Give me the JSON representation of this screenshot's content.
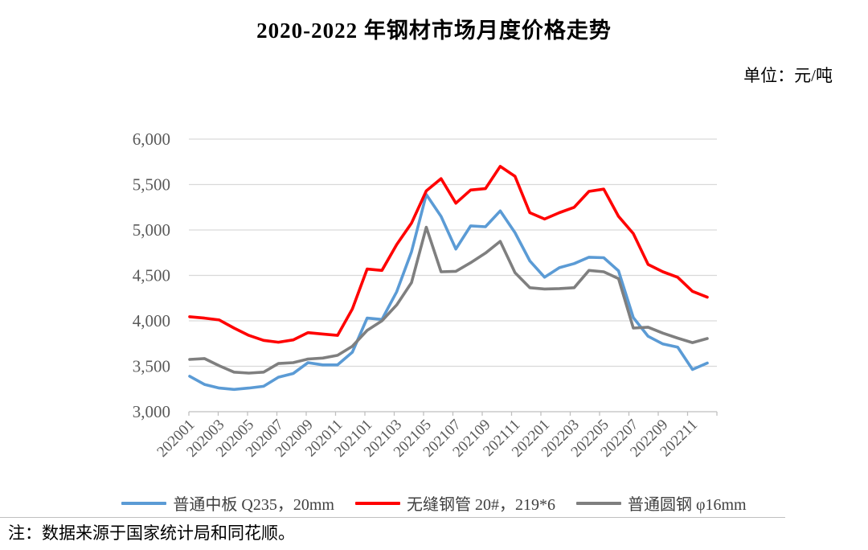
{
  "page": {
    "title": "2020-2022 年钢材市场月度价格走势",
    "unit_label": "单位：元/吨",
    "note": "注：数据来源于国家统计局和同花顺。"
  },
  "chart_data": {
    "type": "line",
    "title": "2020-2022 年钢材市场月度价格走势",
    "unit": "元/吨",
    "grid": "horizontal",
    "legend_position": "bottom",
    "ylim": [
      3000,
      6000
    ],
    "y_tick_step": 500,
    "y_tick_labels": [
      "3,000",
      "3,500",
      "4,000",
      "4,500",
      "5,000",
      "5,500",
      "6,000"
    ],
    "x_tick_labels": [
      "202001",
      "202003",
      "202005",
      "202007",
      "202009",
      "202011",
      "202101",
      "202103",
      "202105",
      "202107",
      "202109",
      "202111",
      "202201",
      "202203",
      "202205",
      "202207",
      "202209",
      "202211"
    ],
    "categories": [
      "202001",
      "202002",
      "202003",
      "202004",
      "202005",
      "202006",
      "202007",
      "202008",
      "202009",
      "202010",
      "202011",
      "202012",
      "202101",
      "202102",
      "202103",
      "202104",
      "202105",
      "202106",
      "202107",
      "202108",
      "202109",
      "202110",
      "202111",
      "202112",
      "202201",
      "202202",
      "202203",
      "202204",
      "202205",
      "202206",
      "202207",
      "202208",
      "202209",
      "202210",
      "202211",
      "202212"
    ],
    "series": [
      {
        "name": "普通中板 Q235，20mm",
        "color": "#5B9BD5",
        "values": [
          3390,
          3300,
          3260,
          3245,
          3260,
          3280,
          3380,
          3420,
          3540,
          3515,
          3515,
          3655,
          4030,
          4015,
          4320,
          4760,
          5390,
          5150,
          4790,
          5045,
          5035,
          5210,
          4970,
          4660,
          4480,
          4585,
          4630,
          4700,
          4695,
          4550,
          4035,
          3830,
          3745,
          3710,
          3465,
          3535
        ]
      },
      {
        "name": "无缝钢管 20#，219*6",
        "color": "#FF0000",
        "values": [
          4045,
          4030,
          4010,
          3920,
          3840,
          3785,
          3765,
          3790,
          3870,
          3855,
          3840,
          4130,
          4570,
          4555,
          4840,
          5075,
          5430,
          5565,
          5295,
          5440,
          5455,
          5700,
          5590,
          5190,
          5120,
          5190,
          5250,
          5425,
          5450,
          5150,
          4960,
          4620,
          4540,
          4480,
          4325,
          4260
        ]
      },
      {
        "name": "普通圆钢 φ16mm",
        "color": "#7F7F7F",
        "values": [
          3575,
          3585,
          3505,
          3435,
          3425,
          3435,
          3530,
          3540,
          3580,
          3590,
          3620,
          3720,
          3895,
          4000,
          4175,
          4420,
          5030,
          4540,
          4545,
          4640,
          4745,
          4875,
          4530,
          4365,
          4350,
          4355,
          4365,
          4555,
          4540,
          4465,
          3920,
          3930,
          3865,
          3810,
          3760,
          3805
        ]
      }
    ]
  }
}
